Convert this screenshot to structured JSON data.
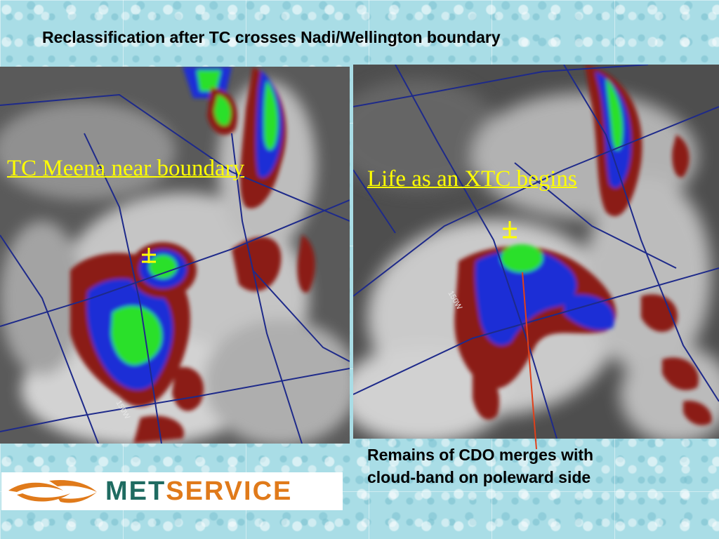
{
  "slide": {
    "title": "Reclassification after TC crosses Nadi/Wellington boundary",
    "left_label": "TC Meena near boundary",
    "right_label": "Life as an XTC begins",
    "caption_line1": "Remains of CDO merges with",
    "caption_line2": "cloud-band on poleward side",
    "left_meridian_label": "150W",
    "right_meridian_label": "150W",
    "logo_met": "MET",
    "logo_service": "SERVICE"
  },
  "colors": {
    "label_yellow": "#ffff00",
    "enhance_red": "#8b1a14",
    "enhance_blue": "#1a2fd6",
    "enhance_green": "#29e02c",
    "enhance_magenta": "#d23cd2",
    "grid_line": "#1e2a8a",
    "arrow_red": "#e0401a",
    "logo_teal": "#1f6b61",
    "logo_orange": "#e07a1a"
  },
  "icons": [
    "storm-center-marker-icon",
    "metservice-swoosh-icon"
  ]
}
